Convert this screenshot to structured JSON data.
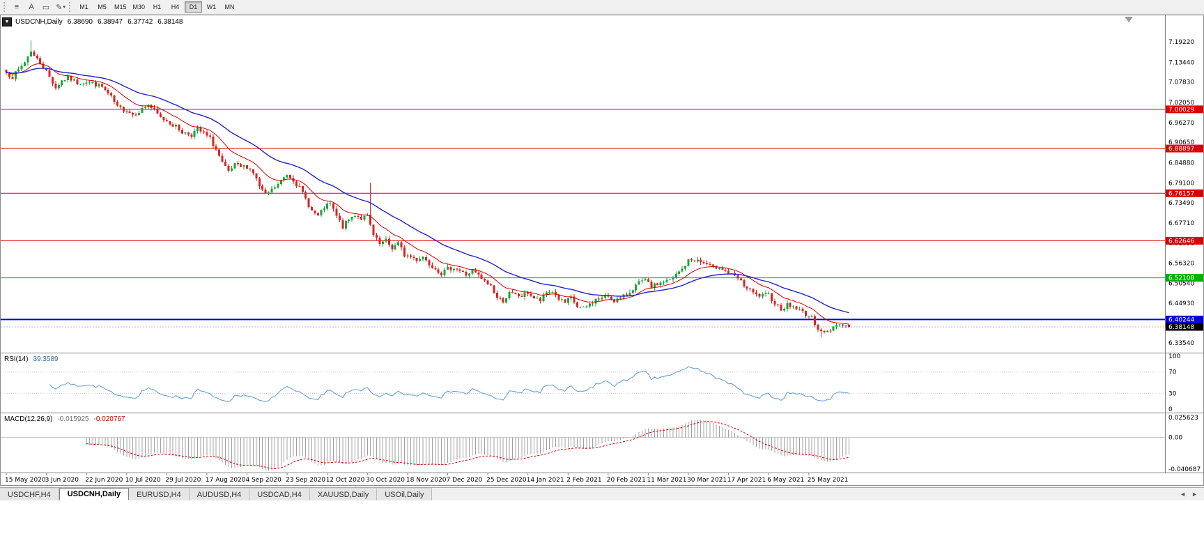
{
  "toolbar": {
    "icon_buttons": [
      {
        "name": "chart-menu",
        "glyph": "≡"
      },
      {
        "name": "text-tool",
        "glyph": "A"
      },
      {
        "name": "objects-tool",
        "glyph": "▭"
      },
      {
        "name": "drawing-tools",
        "glyph": "✎",
        "dropdown": "▾"
      }
    ],
    "timeframes": [
      {
        "label": "M1",
        "active": false
      },
      {
        "label": "M5",
        "active": false
      },
      {
        "label": "M15",
        "active": false
      },
      {
        "label": "M30",
        "active": false
      },
      {
        "label": "H1",
        "active": false
      },
      {
        "label": "H4",
        "active": false
      },
      {
        "label": "D1",
        "active": true
      },
      {
        "label": "W1",
        "active": false
      },
      {
        "label": "MN",
        "active": false
      }
    ]
  },
  "chart": {
    "collapse_button_glyph": "▼",
    "title": {
      "symbol_period": "USDCNH,Daily",
      "open": "6.38690",
      "high": "6.38947",
      "low": "6.37742",
      "close": "6.38148"
    },
    "rsi_panel": {
      "label": "RSI(14)",
      "value": "39.3589",
      "axis_labels": [
        {
          "v": "100",
          "level": 100
        },
        {
          "v": "70",
          "level": 70
        },
        {
          "v": "30",
          "level": 30
        },
        {
          "v": "0",
          "level": 0
        }
      ]
    },
    "macd_panel": {
      "label": "MACD(12,26,9)",
      "value_main": "-0.015925",
      "value_signal": "-0.020767",
      "axis_labels": [
        {
          "v": "0.025623",
          "level": 0.025623
        },
        {
          "v": "0.00",
          "level": 0
        },
        {
          "v": "-0.040687",
          "level": -0.040687
        }
      ]
    }
  },
  "chart_data": {
    "type": "candlestick",
    "instrument": "USDCNH",
    "period": "Daily",
    "bar_count": 274,
    "last_candle_ohlc": {
      "open": 6.3869,
      "high": 6.38947,
      "low": 6.37742,
      "close": 6.38148
    },
    "current_price": 6.38148,
    "y_range_visible": [
      6.31,
      7.26
    ],
    "y_tick_labels": [
      "7.19220",
      "7.13440",
      "7.07830",
      "7.02050",
      "6.96270",
      "6.90650",
      "6.84880",
      "6.79100",
      "6.73490",
      "6.67710",
      "6.61930",
      "6.56320",
      "6.50540",
      "6.44930",
      "6.39150",
      "6.33540"
    ],
    "x_tick_labels": [
      {
        "label": "15 May 2020",
        "bar": 0
      },
      {
        "label": "3 Jun 2020",
        "bar": 13
      },
      {
        "label": "22 Jun 2020",
        "bar": 26
      },
      {
        "label": "10 Jul 2020",
        "bar": 39
      },
      {
        "label": "29 Jul 2020",
        "bar": 52
      },
      {
        "label": "17 Aug 2020",
        "bar": 65
      },
      {
        "label": "4 Sep 2020",
        "bar": 78
      },
      {
        "label": "23 Sep 2020",
        "bar": 91
      },
      {
        "label": "12 Oct 2020",
        "bar": 104
      },
      {
        "label": "30 Oct 2020",
        "bar": 117
      },
      {
        "label": "18 Nov 2020",
        "bar": 130
      },
      {
        "label": "7 Dec 2020",
        "bar": 143
      },
      {
        "label": "25 Dec 2020",
        "bar": 156
      },
      {
        "label": "14 Jan 2021",
        "bar": 169
      },
      {
        "label": "2 Feb 2021",
        "bar": 182
      },
      {
        "label": "20 Feb 2021",
        "bar": 195
      },
      {
        "label": "11 Mar 2021",
        "bar": 208
      },
      {
        "label": "30 Mar 2021",
        "bar": 221
      },
      {
        "label": "17 Apr 2021",
        "bar": 234
      },
      {
        "label": "6 May 2021",
        "bar": 247
      },
      {
        "label": "25 May 2021",
        "bar": 260
      }
    ],
    "horizontal_lines": [
      {
        "price": 7.00029,
        "label": "7.00029",
        "color": "#dd0000",
        "width": 1,
        "type": "resistance"
      },
      {
        "price": 6.88897,
        "label": "6.88897",
        "color": "#dd0000",
        "width": 1,
        "type": "resistance"
      },
      {
        "price": 6.76157,
        "label": "6.76157",
        "color": "#dd0000",
        "width": 1,
        "type": "resistance"
      },
      {
        "price": 6.62646,
        "label": "6.62646",
        "color": "#dd0000",
        "width": 1,
        "type": "resistance"
      },
      {
        "price": 6.52108,
        "label": "6.52108",
        "color": "#00b300",
        "width": 1,
        "type": "level"
      },
      {
        "price": 6.40244,
        "label": "6.40244",
        "color": "#0000e0",
        "width": 2,
        "type": "support"
      }
    ],
    "current_price_badge": {
      "label": "6.38148",
      "bg": "#000000",
      "fg": "#ffffff"
    },
    "candle_colors": {
      "up": "#1aa637",
      "down": "#e02020"
    },
    "moving_averages": [
      {
        "period": 13,
        "method": "ema",
        "color": "#d40000",
        "width": 1
      },
      {
        "period": 34,
        "method": "ema",
        "color": "#2222cc",
        "width": 1.4
      }
    ],
    "indicators": [
      {
        "name": "RSI",
        "period": 14,
        "current": 39.3589,
        "levels": [
          30,
          70
        ],
        "range": [
          0,
          100
        ],
        "color": "#5a9bd4"
      },
      {
        "name": "MACD",
        "params": [
          12,
          26,
          9
        ],
        "current_macd": -0.015925,
        "current_signal": -0.020767,
        "axis_range": [
          -0.040687,
          0.025623
        ],
        "histogram_color": "#a0a0a0",
        "signal_color": "#d40000",
        "signal_style": "dashed"
      }
    ],
    "close_trend_anchors_approx": [
      [
        0,
        7.105
      ],
      [
        2,
        7.092
      ],
      [
        4,
        7.112
      ],
      [
        6,
        7.135
      ],
      [
        8,
        7.168
      ],
      [
        9,
        7.152
      ],
      [
        11,
        7.133
      ],
      [
        13,
        7.108
      ],
      [
        16,
        7.062
      ],
      [
        18,
        7.082
      ],
      [
        20,
        7.09
      ],
      [
        23,
        7.076
      ],
      [
        26,
        7.079
      ],
      [
        29,
        7.071
      ],
      [
        31,
        7.064
      ],
      [
        34,
        7.034
      ],
      [
        36,
        7.006
      ],
      [
        39,
        6.998
      ],
      [
        41,
        6.986
      ],
      [
        44,
        7.001
      ],
      [
        46,
        7.014
      ],
      [
        48,
        6.996
      ],
      [
        50,
        6.976
      ],
      [
        52,
        6.968
      ],
      [
        55,
        6.951
      ],
      [
        57,
        6.936
      ],
      [
        60,
        6.928
      ],
      [
        62,
        6.944
      ],
      [
        64,
        6.931
      ],
      [
        66,
        6.917
      ],
      [
        68,
        6.886
      ],
      [
        70,
        6.846
      ],
      [
        72,
        6.821
      ],
      [
        74,
        6.841
      ],
      [
        76,
        6.836
      ],
      [
        78,
        6.838
      ],
      [
        80,
        6.821
      ],
      [
        82,
        6.781
      ],
      [
        84,
        6.756
      ],
      [
        86,
        6.771
      ],
      [
        88,
        6.786
      ],
      [
        91,
        6.816
      ],
      [
        93,
        6.801
      ],
      [
        95,
        6.776
      ],
      [
        97,
        6.746
      ],
      [
        99,
        6.711
      ],
      [
        101,
        6.696
      ],
      [
        103,
        6.721
      ],
      [
        105,
        6.731
      ],
      [
        107,
        6.696
      ],
      [
        109,
        6.666
      ],
      [
        111,
        6.686
      ],
      [
        113,
        6.701
      ],
      [
        115,
        6.691
      ],
      [
        117,
        6.696
      ],
      [
        119,
        6.641
      ],
      [
        121,
        6.616
      ],
      [
        123,
        6.626
      ],
      [
        125,
        6.606
      ],
      [
        127,
        6.619
      ],
      [
        129,
        6.586
      ],
      [
        131,
        6.581
      ],
      [
        133,
        6.573
      ],
      [
        135,
        6.581
      ],
      [
        137,
        6.561
      ],
      [
        139,
        6.549
      ],
      [
        141,
        6.533
      ],
      [
        143,
        6.546
      ],
      [
        145,
        6.551
      ],
      [
        147,
        6.541
      ],
      [
        149,
        6.529
      ],
      [
        151,
        6.541
      ],
      [
        153,
        6.526
      ],
      [
        155,
        6.509
      ],
      [
        157,
        6.499
      ],
      [
        159,
        6.463
      ],
      [
        161,
        6.456
      ],
      [
        163,
        6.476
      ],
      [
        165,
        6.471
      ],
      [
        167,
        6.469
      ],
      [
        169,
        6.479
      ],
      [
        171,
        6.463
      ],
      [
        173,
        6.456
      ],
      [
        175,
        6.479
      ],
      [
        177,
        6.483
      ],
      [
        179,
        6.461
      ],
      [
        181,
        6.449
      ],
      [
        183,
        6.463
      ],
      [
        185,
        6.439
      ],
      [
        187,
        6.433
      ],
      [
        189,
        6.446
      ],
      [
        191,
        6.459
      ],
      [
        193,
        6.463
      ],
      [
        195,
        6.469
      ],
      [
        197,
        6.456
      ],
      [
        199,
        6.463
      ],
      [
        201,
        6.473
      ],
      [
        203,
        6.491
      ],
      [
        205,
        6.506
      ],
      [
        207,
        6.513
      ],
      [
        209,
        6.496
      ],
      [
        211,
        6.503
      ],
      [
        213,
        6.511
      ],
      [
        215,
        6.513
      ],
      [
        217,
        6.529
      ],
      [
        219,
        6.546
      ],
      [
        221,
        6.569
      ],
      [
        223,
        6.573
      ],
      [
        225,
        6.566
      ],
      [
        227,
        6.559
      ],
      [
        229,
        6.549
      ],
      [
        231,
        6.553
      ],
      [
        233,
        6.541
      ],
      [
        235,
        6.529
      ],
      [
        237,
        6.519
      ],
      [
        239,
        6.499
      ],
      [
        241,
        6.483
      ],
      [
        243,
        6.471
      ],
      [
        245,
        6.469
      ],
      [
        247,
        6.473
      ],
      [
        249,
        6.449
      ],
      [
        251,
        6.433
      ],
      [
        253,
        6.443
      ],
      [
        255,
        6.439
      ],
      [
        257,
        6.429
      ],
      [
        259,
        6.419
      ],
      [
        261,
        6.406
      ],
      [
        263,
        6.379
      ],
      [
        265,
        6.363
      ],
      [
        267,
        6.373
      ],
      [
        269,
        6.391
      ],
      [
        271,
        6.386
      ],
      [
        273,
        6.3815
      ]
    ],
    "wick_extremes": [
      {
        "bar": 8,
        "high": 7.197
      },
      {
        "bar": 118,
        "high": 6.791
      },
      {
        "bar": 264,
        "low": 6.353
      }
    ]
  },
  "tabs": {
    "items": [
      {
        "label": "USDCHF,H4",
        "active": false
      },
      {
        "label": "USDCNH,Daily",
        "active": true
      },
      {
        "label": "EURUSD,H4",
        "active": false
      },
      {
        "label": "AUDUSD,H4",
        "active": false
      },
      {
        "label": "USDCAD,H4",
        "active": false
      },
      {
        "label": "XAUUSD,Daily",
        "active": false
      },
      {
        "label": "USOil,Daily",
        "active": false
      }
    ],
    "scroll_left": "◄",
    "scroll_right": "►"
  }
}
